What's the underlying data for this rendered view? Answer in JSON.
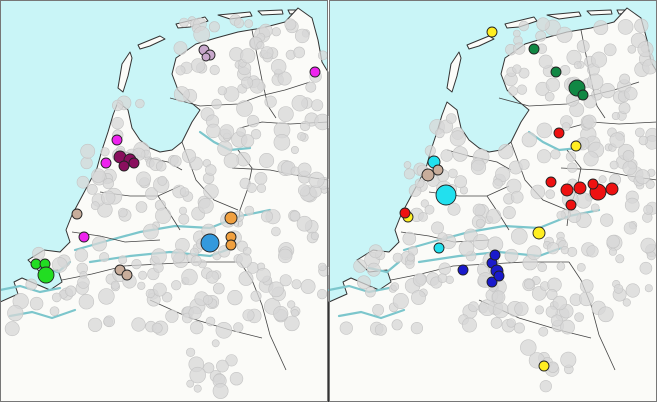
{
  "maps": [
    {
      "id": "left",
      "clusters": [
        {
          "color": "#c8a8cc",
          "points": [
            [
              204,
              50,
              5
            ],
            [
              210,
              55,
              5
            ],
            [
              206,
              57,
              4
            ]
          ]
        },
        {
          "color": "#ee22ee",
          "points": [
            [
              315,
              72,
              5
            ],
            [
              117,
              140,
              5
            ],
            [
              106,
              163,
              5
            ],
            [
              84,
              237,
              5
            ]
          ]
        },
        {
          "color": "#8a0f5e",
          "points": [
            [
              120,
              157,
              6
            ],
            [
              130,
              160,
              6
            ],
            [
              124,
              166,
              5
            ],
            [
              134,
              163,
              5
            ]
          ]
        },
        {
          "color": "#c8ad9b",
          "points": [
            [
              77,
              214,
              5
            ],
            [
              120,
              270,
              5
            ],
            [
              127,
              275,
              5
            ]
          ]
        },
        {
          "color": "#f0a040",
          "points": [
            [
              231,
              218,
              6
            ],
            [
              231,
              237,
              5
            ],
            [
              231,
              245,
              5
            ]
          ]
        },
        {
          "color": "#3399dd",
          "points": [
            [
              210,
              243,
              9
            ]
          ]
        },
        {
          "color": "#22dd22",
          "points": [
            [
              36,
              264,
              5
            ],
            [
              45,
              264,
              5
            ],
            [
              46,
              275,
              8
            ]
          ]
        }
      ]
    },
    {
      "id": "right",
      "clusters": [
        {
          "color": "#ffee22",
          "points": [
            [
              492,
              32,
              5
            ],
            [
              576,
              146,
              5
            ],
            [
              539,
              233,
              6
            ],
            [
              544,
              366,
              5
            ],
            [
              408,
              217,
              5
            ]
          ]
        },
        {
          "color": "#118844",
          "points": [
            [
              534,
              49,
              5
            ],
            [
              556,
              72,
              5
            ],
            [
              577,
              88,
              8
            ],
            [
              583,
              95,
              5
            ]
          ]
        },
        {
          "color": "#ee1111",
          "points": [
            [
              559,
              133,
              5
            ],
            [
              551,
              182,
              5
            ],
            [
              567,
              190,
              6
            ],
            [
              580,
              188,
              6
            ],
            [
              598,
              192,
              8
            ],
            [
              612,
              189,
              6
            ],
            [
              571,
              205,
              5
            ],
            [
              405,
              213,
              5
            ],
            [
              593,
              184,
              5
            ]
          ]
        },
        {
          "color": "#22e0ee",
          "points": [
            [
              434,
              162,
              6
            ],
            [
              446,
              195,
              10
            ],
            [
              439,
              248,
              5
            ]
          ]
        },
        {
          "color": "#c8ad9b",
          "points": [
            [
              428,
              175,
              6
            ],
            [
              438,
              170,
              5
            ]
          ]
        },
        {
          "color": "#1a1acc",
          "points": [
            [
              463,
              270,
              5
            ],
            [
              492,
              263,
              5
            ],
            [
              497,
              271,
              6
            ],
            [
              492,
              282,
              5
            ],
            [
              499,
              276,
              5
            ],
            [
              495,
              255,
              5
            ]
          ]
        }
      ]
    }
  ]
}
